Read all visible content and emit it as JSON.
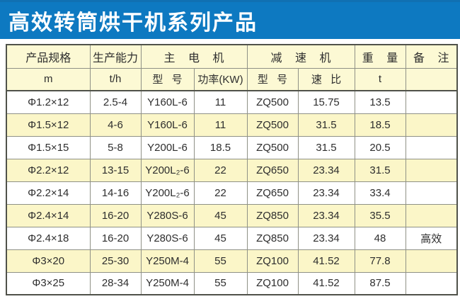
{
  "banner": {
    "title": "高效转筒烘干机系列产品",
    "background_color": "#0d79c1",
    "text_color": "#ffffff"
  },
  "table": {
    "header_row1": [
      "产品规格",
      "生产能力",
      "主 电 机",
      "减 速 机",
      "重 量",
      "备 注"
    ],
    "header_row2": [
      "m",
      "t/h",
      "型 号",
      "功率(KW)",
      "型 号",
      "速 比",
      "t",
      ""
    ],
    "rows": [
      [
        "Φ1.2×12",
        "2.5-4",
        "Y160L-6",
        "11",
        "ZQ500",
        "15.75",
        "13.5",
        ""
      ],
      [
        "Φ1.5×12",
        "4-6",
        "Y160L-6",
        "11",
        "ZQ500",
        "31.5",
        "18.5",
        ""
      ],
      [
        "Φ1.5×15",
        "5-8",
        "Y200L-6",
        "18.5",
        "ZQ500",
        "31.5",
        "20.5",
        ""
      ],
      [
        "Φ2.2×12",
        "13-15",
        "Y200L₂-6",
        "22",
        "ZQ650",
        "23.34",
        "31.5",
        ""
      ],
      [
        "Φ2.2×14",
        "14-16",
        "Y200L₂-6",
        "22",
        "ZQ650",
        "23.34",
        "33.4",
        ""
      ],
      [
        "Φ2.4×14",
        "16-20",
        "Y280S-6",
        "45",
        "ZQ850",
        "23.34",
        "35.5",
        ""
      ],
      [
        "Φ2.4×18",
        "16-20",
        "Y280S-6",
        "45",
        "ZQ850",
        "23.34",
        "48",
        "高效"
      ],
      [
        "Φ3×20",
        "25-30",
        "Y250M-4",
        "55",
        "ZQ100",
        "41.52",
        "77.8",
        ""
      ],
      [
        "Φ3×25",
        "28-34",
        "Y250M-4",
        "55",
        "ZQ100",
        "41.52",
        "87.5",
        ""
      ]
    ],
    "colors": {
      "header_bg": "#fcf9d4",
      "row_default_bg": "#ffffff",
      "row_alt_bg": "#fbf6c8",
      "inner_border": "#8f9186",
      "outer_border": "#50524a"
    }
  }
}
